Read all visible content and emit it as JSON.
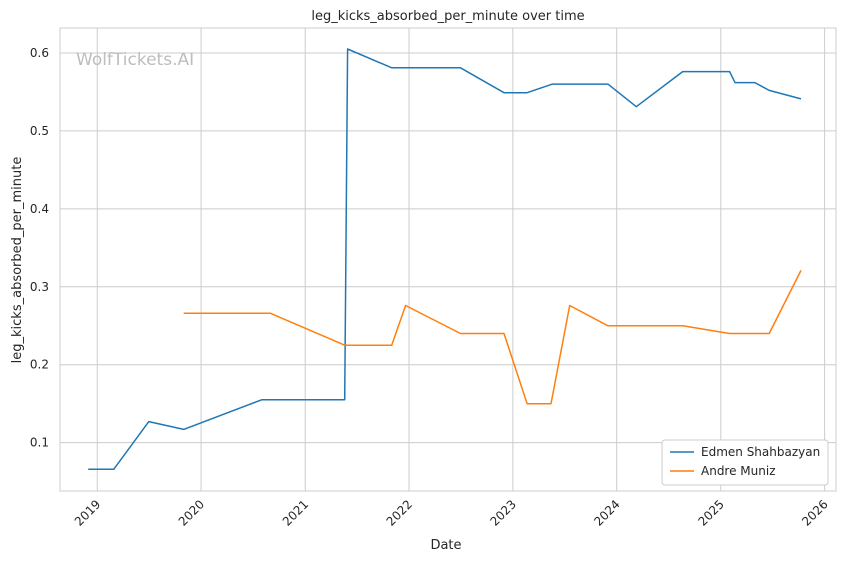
{
  "watermark": "WolfTickets.AI",
  "chart_data": {
    "type": "line",
    "title": "leg_kicks_absorbed_per_minute over time",
    "xlabel": "Date",
    "ylabel": "leg_kicks_absorbed_per_minute",
    "x_ticks": [
      "2019",
      "2020",
      "2021",
      "2022",
      "2023",
      "2024",
      "2025",
      "2026"
    ],
    "y_ticks": [
      "0.1",
      "0.2",
      "0.3",
      "0.4",
      "0.5",
      "0.6"
    ],
    "xlim": [
      "2018-08-23",
      "2026-02-10"
    ],
    "ylim": [
      0.038,
      0.632
    ],
    "grid": true,
    "legend_position": "lower-right",
    "series": [
      {
        "name": "Edmen Shahbazyan",
        "color": "#1f77b4",
        "points": [
          [
            "2018-11-30",
            0.066
          ],
          [
            "2019-02-28",
            0.066
          ],
          [
            "2019-07-01",
            0.127
          ],
          [
            "2019-11-01",
            0.117
          ],
          [
            "2020-08-01",
            0.155
          ],
          [
            "2021-05-20",
            0.155
          ],
          [
            "2021-05-30",
            0.605
          ],
          [
            "2021-11-01",
            0.581
          ],
          [
            "2022-07-01",
            0.581
          ],
          [
            "2022-12-01",
            0.549
          ],
          [
            "2023-02-20",
            0.549
          ],
          [
            "2023-05-20",
            0.56
          ],
          [
            "2023-12-01",
            0.56
          ],
          [
            "2024-03-10",
            0.531
          ],
          [
            "2024-08-20",
            0.576
          ],
          [
            "2025-02-01",
            0.576
          ],
          [
            "2025-02-20",
            0.562
          ],
          [
            "2025-05-01",
            0.562
          ],
          [
            "2025-06-20",
            0.552
          ],
          [
            "2025-10-10",
            0.541
          ]
        ]
      },
      {
        "name": "Andre Muniz",
        "color": "#ff7f0e",
        "points": [
          [
            "2019-11-01",
            0.266
          ],
          [
            "2020-09-01",
            0.266
          ],
          [
            "2021-05-20",
            0.225
          ],
          [
            "2021-11-01",
            0.225
          ],
          [
            "2021-12-20",
            0.276
          ],
          [
            "2022-07-01",
            0.24
          ],
          [
            "2022-12-01",
            0.24
          ],
          [
            "2023-02-20",
            0.15
          ],
          [
            "2023-05-15",
            0.15
          ],
          [
            "2023-07-20",
            0.276
          ],
          [
            "2023-12-01",
            0.25
          ],
          [
            "2024-08-20",
            0.25
          ],
          [
            "2025-02-01",
            0.24
          ],
          [
            "2025-06-20",
            0.24
          ],
          [
            "2025-10-10",
            0.321
          ]
        ]
      }
    ]
  }
}
